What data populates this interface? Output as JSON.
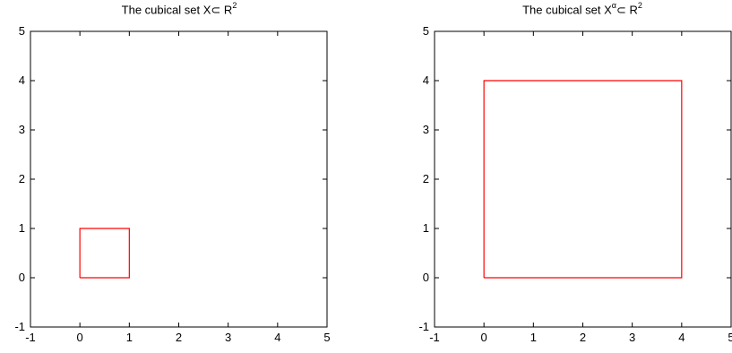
{
  "chart_data": [
    {
      "type": "line",
      "title_text": "The cubical set X",
      "title_symbol": "⊂",
      "title_space": "R",
      "title_exp": "2",
      "xlim": [
        -1,
        5
      ],
      "ylim": [
        -1,
        5
      ],
      "x_ticks": [
        -1,
        0,
        1,
        2,
        3,
        4,
        5
      ],
      "y_ticks": [
        -1,
        0,
        1,
        2,
        3,
        4,
        5
      ],
      "grid": false,
      "series": [
        {
          "x": [
            0,
            1,
            1,
            0,
            0
          ],
          "y": [
            0,
            0,
            1,
            1,
            0
          ],
          "color": "#ff0000"
        }
      ]
    },
    {
      "type": "line",
      "title_text": "The cubical set X",
      "title_sup": "α",
      "title_symbol": "⊂",
      "title_space": "R",
      "title_exp": "2",
      "xlim": [
        -1,
        5
      ],
      "ylim": [
        -1,
        5
      ],
      "x_ticks": [
        -1,
        0,
        1,
        2,
        3,
        4,
        5
      ],
      "y_ticks": [
        -1,
        0,
        1,
        2,
        3,
        4,
        5
      ],
      "grid": false,
      "series": [
        {
          "x": [
            0,
            4,
            4,
            0,
            0
          ],
          "y": [
            0,
            0,
            4,
            4,
            0
          ],
          "color": "#ff0000"
        }
      ]
    }
  ]
}
